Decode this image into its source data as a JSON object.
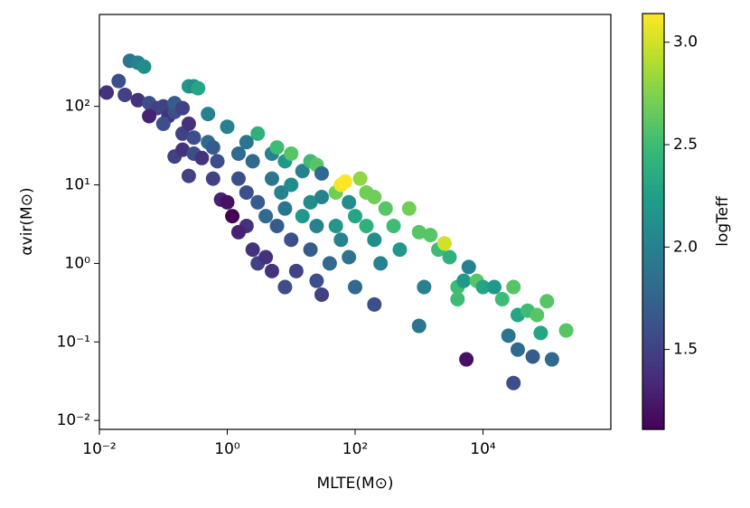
{
  "chart_data": {
    "type": "scatter",
    "x_label": "MLTE(M⊙)",
    "y_label": "αvir(M⊙)",
    "colorbar_label": "logTeff",
    "cmap": "viridis",
    "xscale": "log",
    "yscale": "log",
    "xlim": [
      0.01,
      1000000
    ],
    "ylim": [
      0.0077,
      1480
    ],
    "xticks": [
      {
        "value": 0.01,
        "label": "10⁻²"
      },
      {
        "value": 1,
        "label": "10⁰"
      },
      {
        "value": 100,
        "label": "10²"
      },
      {
        "value": 10000,
        "label": "10⁴"
      }
    ],
    "yticks": [
      {
        "value": 0.01,
        "label": "10⁻²"
      },
      {
        "value": 0.1,
        "label": "10⁻¹"
      },
      {
        "value": 1,
        "label": "10⁰"
      },
      {
        "value": 10,
        "label": "10¹"
      },
      {
        "value": 100,
        "label": "10²"
      }
    ],
    "clim": [
      1.11,
      3.14
    ],
    "cticks": [
      1.5,
      {
        "value": 2.0,
        "label": "2.0"
      },
      2.5,
      {
        "value": 3.0,
        "label": "3.0"
      }
    ],
    "x": [
      0.013,
      0.02,
      0.03,
      0.04,
      0.05,
      0.025,
      0.04,
      0.06,
      0.08,
      0.1,
      0.12,
      0.15,
      0.06,
      0.1,
      0.15,
      0.2,
      0.25,
      0.3,
      0.35,
      0.2,
      0.3,
      0.25,
      0.5,
      1.0,
      0.15,
      0.2,
      0.25,
      0.3,
      0.4,
      0.5,
      0.6,
      0.7,
      0.6,
      0.8,
      1.0,
      1.2,
      1.5,
      1.5,
      2,
      3,
      2.5,
      2,
      3,
      2,
      1.5,
      2.5,
      3,
      4,
      5,
      6,
      8,
      10,
      5,
      7,
      10,
      4,
      6,
      8,
      10,
      5,
      8,
      12,
      15,
      20,
      25,
      30,
      20,
      15,
      25,
      30,
      20,
      25,
      30,
      40,
      50,
      60,
      70,
      80,
      50,
      60,
      80,
      100,
      100,
      120,
      150,
      200,
      150,
      200,
      250,
      200,
      300,
      400,
      500,
      700,
      1000,
      1500,
      2000,
      1000,
      1200,
      2500,
      3000,
      4000,
      5000,
      5500,
      6000,
      8000,
      10000,
      15000,
      20000,
      30000,
      35000,
      25000,
      35000,
      50000,
      70000,
      80000,
      100000,
      120000,
      60000,
      30000,
      200000,
      4000
    ],
    "values": [
      150,
      210,
      380,
      360,
      320,
      140,
      120,
      110,
      95,
      100,
      75,
      85,
      75,
      60,
      110,
      95,
      180,
      180,
      170,
      45,
      40,
      60,
      80,
      55,
      23,
      28,
      13,
      25,
      22,
      35,
      30,
      20,
      12,
      6.5,
      6,
      4,
      12,
      25,
      35,
      45,
      20,
      8,
      6,
      3,
      2.5,
      1.5,
      1,
      1.2,
      25,
      30,
      20,
      25,
      12,
      8,
      10,
      4,
      3,
      5,
      2,
      0.8,
      0.5,
      0.8,
      15,
      20,
      18,
      14,
      6,
      4,
      3,
      7,
      1.5,
      0.6,
      0.4,
      1,
      8,
      10,
      11,
      6,
      3,
      2,
      1.2,
      0.5,
      4,
      12,
      8,
      7,
      3,
      2,
      1,
      0.3,
      5,
      3,
      1.5,
      5,
      2.5,
      2.3,
      1.5,
      0.16,
      0.5,
      1.8,
      1.2,
      0.5,
      0.6,
      0.06,
      0.9,
      0.6,
      0.5,
      0.5,
      0.35,
      0.5,
      0.22,
      0.12,
      0.08,
      0.25,
      0.22,
      0.13,
      0.33,
      0.06,
      0.065,
      0.03,
      0.14,
      0.35
    ],
    "c": [
      1.4,
      1.6,
      1.9,
      2.0,
      2.1,
      1.5,
      1.4,
      1.6,
      1.5,
      1.5,
      1.4,
      1.6,
      1.3,
      1.6,
      1.7,
      1.5,
      2.2,
      2.1,
      2.3,
      1.5,
      1.6,
      1.4,
      2.0,
      2.0,
      1.5,
      1.4,
      1.5,
      1.6,
      1.4,
      1.8,
      1.7,
      1.6,
      1.5,
      1.3,
      1.2,
      1.1,
      1.6,
      1.8,
      1.9,
      2.4,
      1.8,
      1.6,
      1.7,
      1.4,
      1.3,
      1.4,
      1.5,
      1.4,
      2.0,
      2.5,
      2.2,
      2.6,
      1.9,
      2.0,
      2.1,
      1.8,
      1.7,
      1.9,
      1.6,
      1.4,
      1.6,
      1.5,
      2.0,
      2.5,
      2.6,
      1.8,
      2.1,
      2.2,
      2.0,
      2.0,
      1.7,
      1.6,
      1.5,
      1.8,
      2.7,
      3.1,
      3.14,
      2.1,
      2.2,
      2.0,
      1.9,
      1.8,
      2.3,
      2.8,
      2.7,
      2.7,
      2.4,
      2.1,
      2.0,
      1.6,
      2.6,
      2.5,
      2.2,
      2.7,
      2.6,
      2.6,
      2.5,
      1.9,
      2.0,
      3.0,
      2.4,
      2.5,
      2.2,
      1.2,
      2.0,
      2.6,
      2.3,
      2.2,
      2.5,
      2.6,
      2.3,
      1.9,
      1.8,
      2.5,
      2.6,
      2.3,
      2.6,
      1.8,
      1.7,
      1.6,
      2.6,
      2.5
    ]
  }
}
